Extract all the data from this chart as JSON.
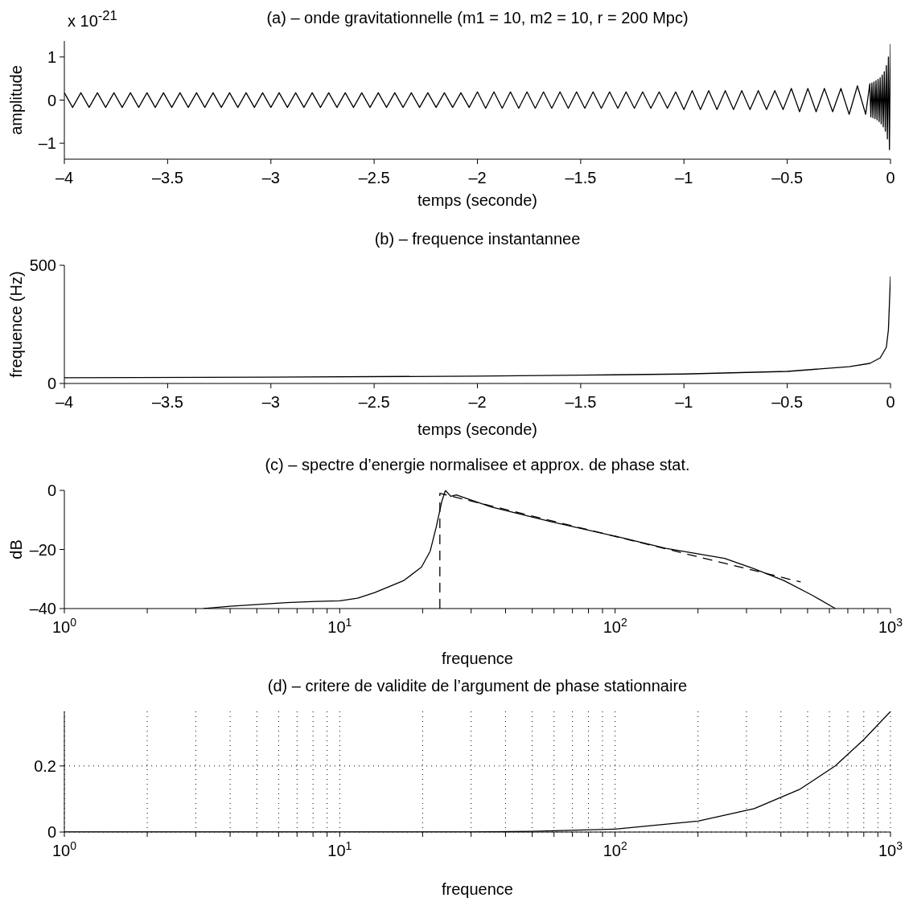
{
  "chart_data": [
    {
      "type": "line",
      "title": "(a) – onde gravitationnelle (m1 = 10, m2 = 10, r = 200 Mpc)",
      "xlabel": "temps (seconde)",
      "ylabel": "amplitude",
      "annotations": [
        "x 10$^{-21}$"
      ],
      "series": [
        {
          "color": "#000000",
          "x": [
            -4,
            -3.96,
            -3.92,
            -3.88,
            -3.84,
            -3.8,
            -3.76,
            -3.72,
            -3.68,
            -3.64,
            -3.6,
            -3.56,
            -3.52,
            -3.48,
            -3.44,
            -3.4,
            -3.36,
            -3.32,
            -3.28,
            -3.24,
            -3.2,
            -3.16,
            -3.12,
            -3.08,
            -3.04,
            -3,
            -2.96,
            -2.92,
            -2.88,
            -2.84,
            -2.8,
            -2.76,
            -2.72,
            -2.68,
            -2.64,
            -2.6,
            -2.56,
            -2.52,
            -2.48,
            -2.44,
            -2.4,
            -2.36,
            -2.32,
            -2.28,
            -2.24,
            -2.2,
            -2.16,
            -2.12,
            -2.08,
            -2.04,
            -2,
            -1.96,
            -1.92,
            -1.88,
            -1.84,
            -1.8,
            -1.76,
            -1.72,
            -1.68,
            -1.64,
            -1.6,
            -1.56,
            -1.52,
            -1.48,
            -1.44,
            -1.4,
            -1.36,
            -1.32,
            -1.28,
            -1.24,
            -1.2,
            -1.16,
            -1.12,
            -1.08,
            -1.04,
            -1,
            -0.96,
            -0.92,
            -0.88,
            -0.84,
            -0.8,
            -0.76,
            -0.72,
            -0.68,
            -0.64,
            -0.6,
            -0.56,
            -0.52,
            -0.48,
            -0.44,
            -0.4,
            -0.36,
            -0.32,
            -0.28,
            -0.24,
            -0.2,
            -0.16,
            -0.12,
            -0.1,
            -0.095,
            -0.09,
            -0.085,
            -0.08,
            -0.075,
            -0.07,
            -0.065,
            -0.06,
            -0.055,
            -0.05,
            -0.045,
            -0.04,
            -0.035,
            -0.03,
            -0.025,
            -0.02,
            -0.015,
            -0.01,
            -0.005,
            0
          ],
          "values": [
            0.17,
            -0.17,
            0.17,
            -0.17,
            0.17,
            -0.17,
            0.17,
            -0.17,
            0.17,
            -0.17,
            0.17,
            -0.17,
            0.17,
            -0.17,
            0.17,
            -0.17,
            0.17,
            -0.17,
            0.17,
            -0.17,
            0.17,
            -0.17,
            0.17,
            -0.17,
            0.17,
            -0.17,
            0.17,
            -0.17,
            0.17,
            -0.17,
            0.17,
            -0.17,
            0.17,
            -0.17,
            0.17,
            -0.17,
            0.17,
            -0.17,
            0.17,
            -0.17,
            0.17,
            -0.17,
            0.17,
            -0.17,
            0.17,
            -0.17,
            0.17,
            -0.17,
            0.17,
            -0.17,
            0.19,
            -0.19,
            0.19,
            -0.19,
            0.19,
            -0.19,
            0.19,
            -0.19,
            0.19,
            -0.19,
            0.19,
            -0.19,
            0.19,
            -0.19,
            0.19,
            -0.19,
            0.19,
            -0.19,
            0.19,
            -0.19,
            0.19,
            -0.19,
            0.19,
            -0.19,
            0.19,
            -0.22,
            0.22,
            -0.22,
            0.22,
            -0.22,
            0.22,
            -0.22,
            0.22,
            -0.22,
            0.22,
            -0.22,
            0.22,
            -0.22,
            0.27,
            -0.27,
            0.27,
            -0.27,
            0.27,
            -0.27,
            0.27,
            -0.33,
            0.33,
            -0.33,
            0.38,
            -0.39,
            0.4,
            -0.41,
            0.42,
            -0.43,
            0.45,
            -0.46,
            0.48,
            -0.5,
            0.52,
            -0.55,
            0.58,
            -0.62,
            0.66,
            -0.72,
            0.8,
            -0.9,
            1,
            -1.15,
            1.3
          ]
        }
      ],
      "xlim": [
        -4,
        0
      ],
      "xticks": [
        {
          "value": -4,
          "label": "–4"
        },
        {
          "value": -3.5,
          "label": "–3.5"
        },
        {
          "value": -3,
          "label": "–3"
        },
        {
          "value": -2.5,
          "label": "–2.5"
        },
        {
          "value": -2,
          "label": "–2"
        },
        {
          "value": -1.5,
          "label": "–1.5"
        },
        {
          "value": -1,
          "label": "–1"
        },
        {
          "value": -0.5,
          "label": "–0.5"
        },
        0
      ],
      "ylim": [
        -1.37,
        1.37
      ],
      "yticks": [
        {
          "value": -1,
          "label": "–1"
        },
        0,
        1
      ]
    },
    {
      "type": "line",
      "title": "(b) – frequence instantannee",
      "xlabel": "temps (seconde)",
      "ylabel": "frequence (Hz)",
      "series": [
        {
          "color": "#000000",
          "x": [
            -4,
            -3,
            -2,
            -1.5,
            -1,
            -0.5,
            -0.2,
            -0.1,
            -0.05,
            -0.02,
            -0.01,
            0
          ],
          "values": [
            24,
            27,
            31,
            35,
            40,
            51,
            71,
            85,
            108,
            153,
            227,
            453
          ]
        }
      ],
      "xlim": [
        -4,
        0
      ],
      "xticks": [
        {
          "value": -4,
          "label": "–4"
        },
        {
          "value": -3.5,
          "label": "–3.5"
        },
        {
          "value": -3,
          "label": "–3"
        },
        {
          "value": -2.5,
          "label": "–2.5"
        },
        {
          "value": -2,
          "label": "–2"
        },
        {
          "value": -1.5,
          "label": "–1.5"
        },
        {
          "value": -1,
          "label": "–1"
        },
        {
          "value": -0.5,
          "label": "–0.5"
        },
        0
      ],
      "ylim": [
        0,
        500
      ],
      "yticks": [
        0,
        500
      ]
    },
    {
      "type": "line",
      "title": "(c) – spectre d’energie normalisee et approx. de phase stat.",
      "xlabel": "frequence",
      "ylabel": "dB",
      "log": "x",
      "series": [
        {
          "color": "#000000",
          "x": [
            3.2,
            4,
            6.4,
            8.2,
            10,
            11.6,
            13.4,
            17.1,
            19.8,
            21.3,
            22.4,
            23.5,
            24.2,
            25.3,
            26.5,
            35.5,
            58,
            100,
            153,
            250,
            319,
            410,
            520,
            631
          ],
          "values": [
            -40,
            -39.2,
            -38,
            -37.6,
            -37.4,
            -36.5,
            -34.6,
            -30.5,
            -26,
            -20.6,
            -12.5,
            -3.6,
            0,
            -2,
            -1.5,
            -5.6,
            -10.5,
            -15.5,
            -19.6,
            -23,
            -26.5,
            -30.5,
            -35.5,
            -40
          ]
        },
        {
          "color": "#000000",
          "line_style": "dashed",
          "x": [
            23.1,
            23.1,
            472
          ],
          "values": [
            -40,
            -1,
            -31
          ]
        }
      ],
      "xlim": [
        1,
        1000
      ],
      "xticks": [
        {
          "value": 1,
          "label": "10$^{0}$"
        },
        {
          "value": 2,
          "label": null
        },
        {
          "value": 3,
          "label": null
        },
        {
          "value": 4,
          "label": null
        },
        {
          "value": 5,
          "label": null
        },
        {
          "value": 6,
          "label": null
        },
        {
          "value": 7,
          "label": null
        },
        {
          "value": 8,
          "label": null
        },
        {
          "value": 9,
          "label": null
        },
        {
          "value": 10,
          "label": "10$^{1}$"
        },
        {
          "value": 20,
          "label": null
        },
        {
          "value": 30,
          "label": null
        },
        {
          "value": 40,
          "label": null
        },
        {
          "value": 50,
          "label": null
        },
        {
          "value": 60,
          "label": null
        },
        {
          "value": 70,
          "label": null
        },
        {
          "value": 80,
          "label": null
        },
        {
          "value": 90,
          "label": null
        },
        {
          "value": 100,
          "label": "10$^{2}$"
        },
        {
          "value": 200,
          "label": null
        },
        {
          "value": 300,
          "label": null
        },
        {
          "value": 400,
          "label": null
        },
        {
          "value": 500,
          "label": null
        },
        {
          "value": 600,
          "label": null
        },
        {
          "value": 700,
          "label": null
        },
        {
          "value": 800,
          "label": null
        },
        {
          "value": 900,
          "label": null
        },
        {
          "value": 1000,
          "label": "10$^{3}$"
        }
      ],
      "ylim": [
        -40,
        0
      ],
      "yticks": [
        {
          "value": -40,
          "label": "–40"
        },
        {
          "value": -20,
          "label": "–20"
        },
        0
      ]
    },
    {
      "type": "line",
      "title": "(d) – critere de validite de l’argument de phase stationnaire",
      "xlabel": "frequence",
      "log": "x",
      "grid": true,
      "series": [
        {
          "color": "#000000",
          "x": [
            1,
            10,
            30,
            50,
            100,
            200,
            320,
            470,
            630,
            800,
            1000
          ],
          "values": [
            0,
            0,
            0,
            0.002,
            0.009,
            0.033,
            0.071,
            0.13,
            0.2,
            0.28,
            0.365
          ]
        }
      ],
      "xlim": [
        1,
        1000
      ],
      "xticks": [
        {
          "value": 1,
          "label": "10$^{0}$"
        },
        {
          "value": 2,
          "label": null
        },
        {
          "value": 3,
          "label": null
        },
        {
          "value": 4,
          "label": null
        },
        {
          "value": 5,
          "label": null
        },
        {
          "value": 6,
          "label": null
        },
        {
          "value": 7,
          "label": null
        },
        {
          "value": 8,
          "label": null
        },
        {
          "value": 9,
          "label": null
        },
        {
          "value": 10,
          "label": "10$^{1}$"
        },
        {
          "value": 20,
          "label": null
        },
        {
          "value": 30,
          "label": null
        },
        {
          "value": 40,
          "label": null
        },
        {
          "value": 50,
          "label": null
        },
        {
          "value": 60,
          "label": null
        },
        {
          "value": 70,
          "label": null
        },
        {
          "value": 80,
          "label": null
        },
        {
          "value": 90,
          "label": null
        },
        {
          "value": 100,
          "label": "10$^{2}$"
        },
        {
          "value": 200,
          "label": null
        },
        {
          "value": 300,
          "label": null
        },
        {
          "value": 400,
          "label": null
        },
        {
          "value": 500,
          "label": null
        },
        {
          "value": 600,
          "label": null
        },
        {
          "value": 700,
          "label": null
        },
        {
          "value": 800,
          "label": null
        },
        {
          "value": 900,
          "label": null
        },
        {
          "value": 1000,
          "label": "10$^{3}$"
        }
      ],
      "ylim": [
        0,
        0.365
      ],
      "yticks": [
        0,
        0.2
      ]
    }
  ]
}
